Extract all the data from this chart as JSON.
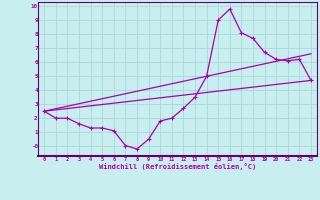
{
  "xlabel": "Windchill (Refroidissement éolien,°C)",
  "bg_color": "#c8eef0",
  "grid_color": "#a8d8d8",
  "line_color": "#aa00aa",
  "border_color": "#660066",
  "xlabel_color": "#aa00aa",
  "tick_color": "#aa00aa",
  "xlim": [
    -0.5,
    23.5
  ],
  "ylim": [
    -0.7,
    10.3
  ],
  "xticks": [
    0,
    1,
    2,
    3,
    4,
    5,
    6,
    7,
    8,
    9,
    10,
    11,
    12,
    13,
    14,
    15,
    16,
    17,
    18,
    19,
    20,
    21,
    22,
    23
  ],
  "yticks": [
    0,
    1,
    2,
    3,
    4,
    5,
    6,
    7,
    8,
    9,
    10
  ],
  "ytick_labels": [
    "-0",
    "1",
    "2",
    "3",
    "4",
    "5",
    "6",
    "7",
    "8",
    "9",
    "10"
  ],
  "line1_x": [
    0,
    1,
    2,
    3,
    4,
    5,
    6,
    7,
    8,
    9,
    10,
    11,
    12,
    13,
    14,
    15,
    16,
    17,
    18,
    19,
    20,
    21,
    22,
    23
  ],
  "line1_y": [
    2.5,
    2.0,
    2.0,
    1.6,
    1.3,
    1.3,
    1.1,
    0.05,
    -0.2,
    0.5,
    1.8,
    2.0,
    2.7,
    3.5,
    5.0,
    9.0,
    9.8,
    8.1,
    7.7,
    6.7,
    6.2,
    6.1,
    6.2,
    4.7
  ],
  "line2_x": [
    0,
    23
  ],
  "line2_y": [
    2.5,
    4.7
  ],
  "line3_x": [
    0,
    23
  ],
  "line3_y": [
    2.5,
    6.6
  ],
  "marker": "+"
}
